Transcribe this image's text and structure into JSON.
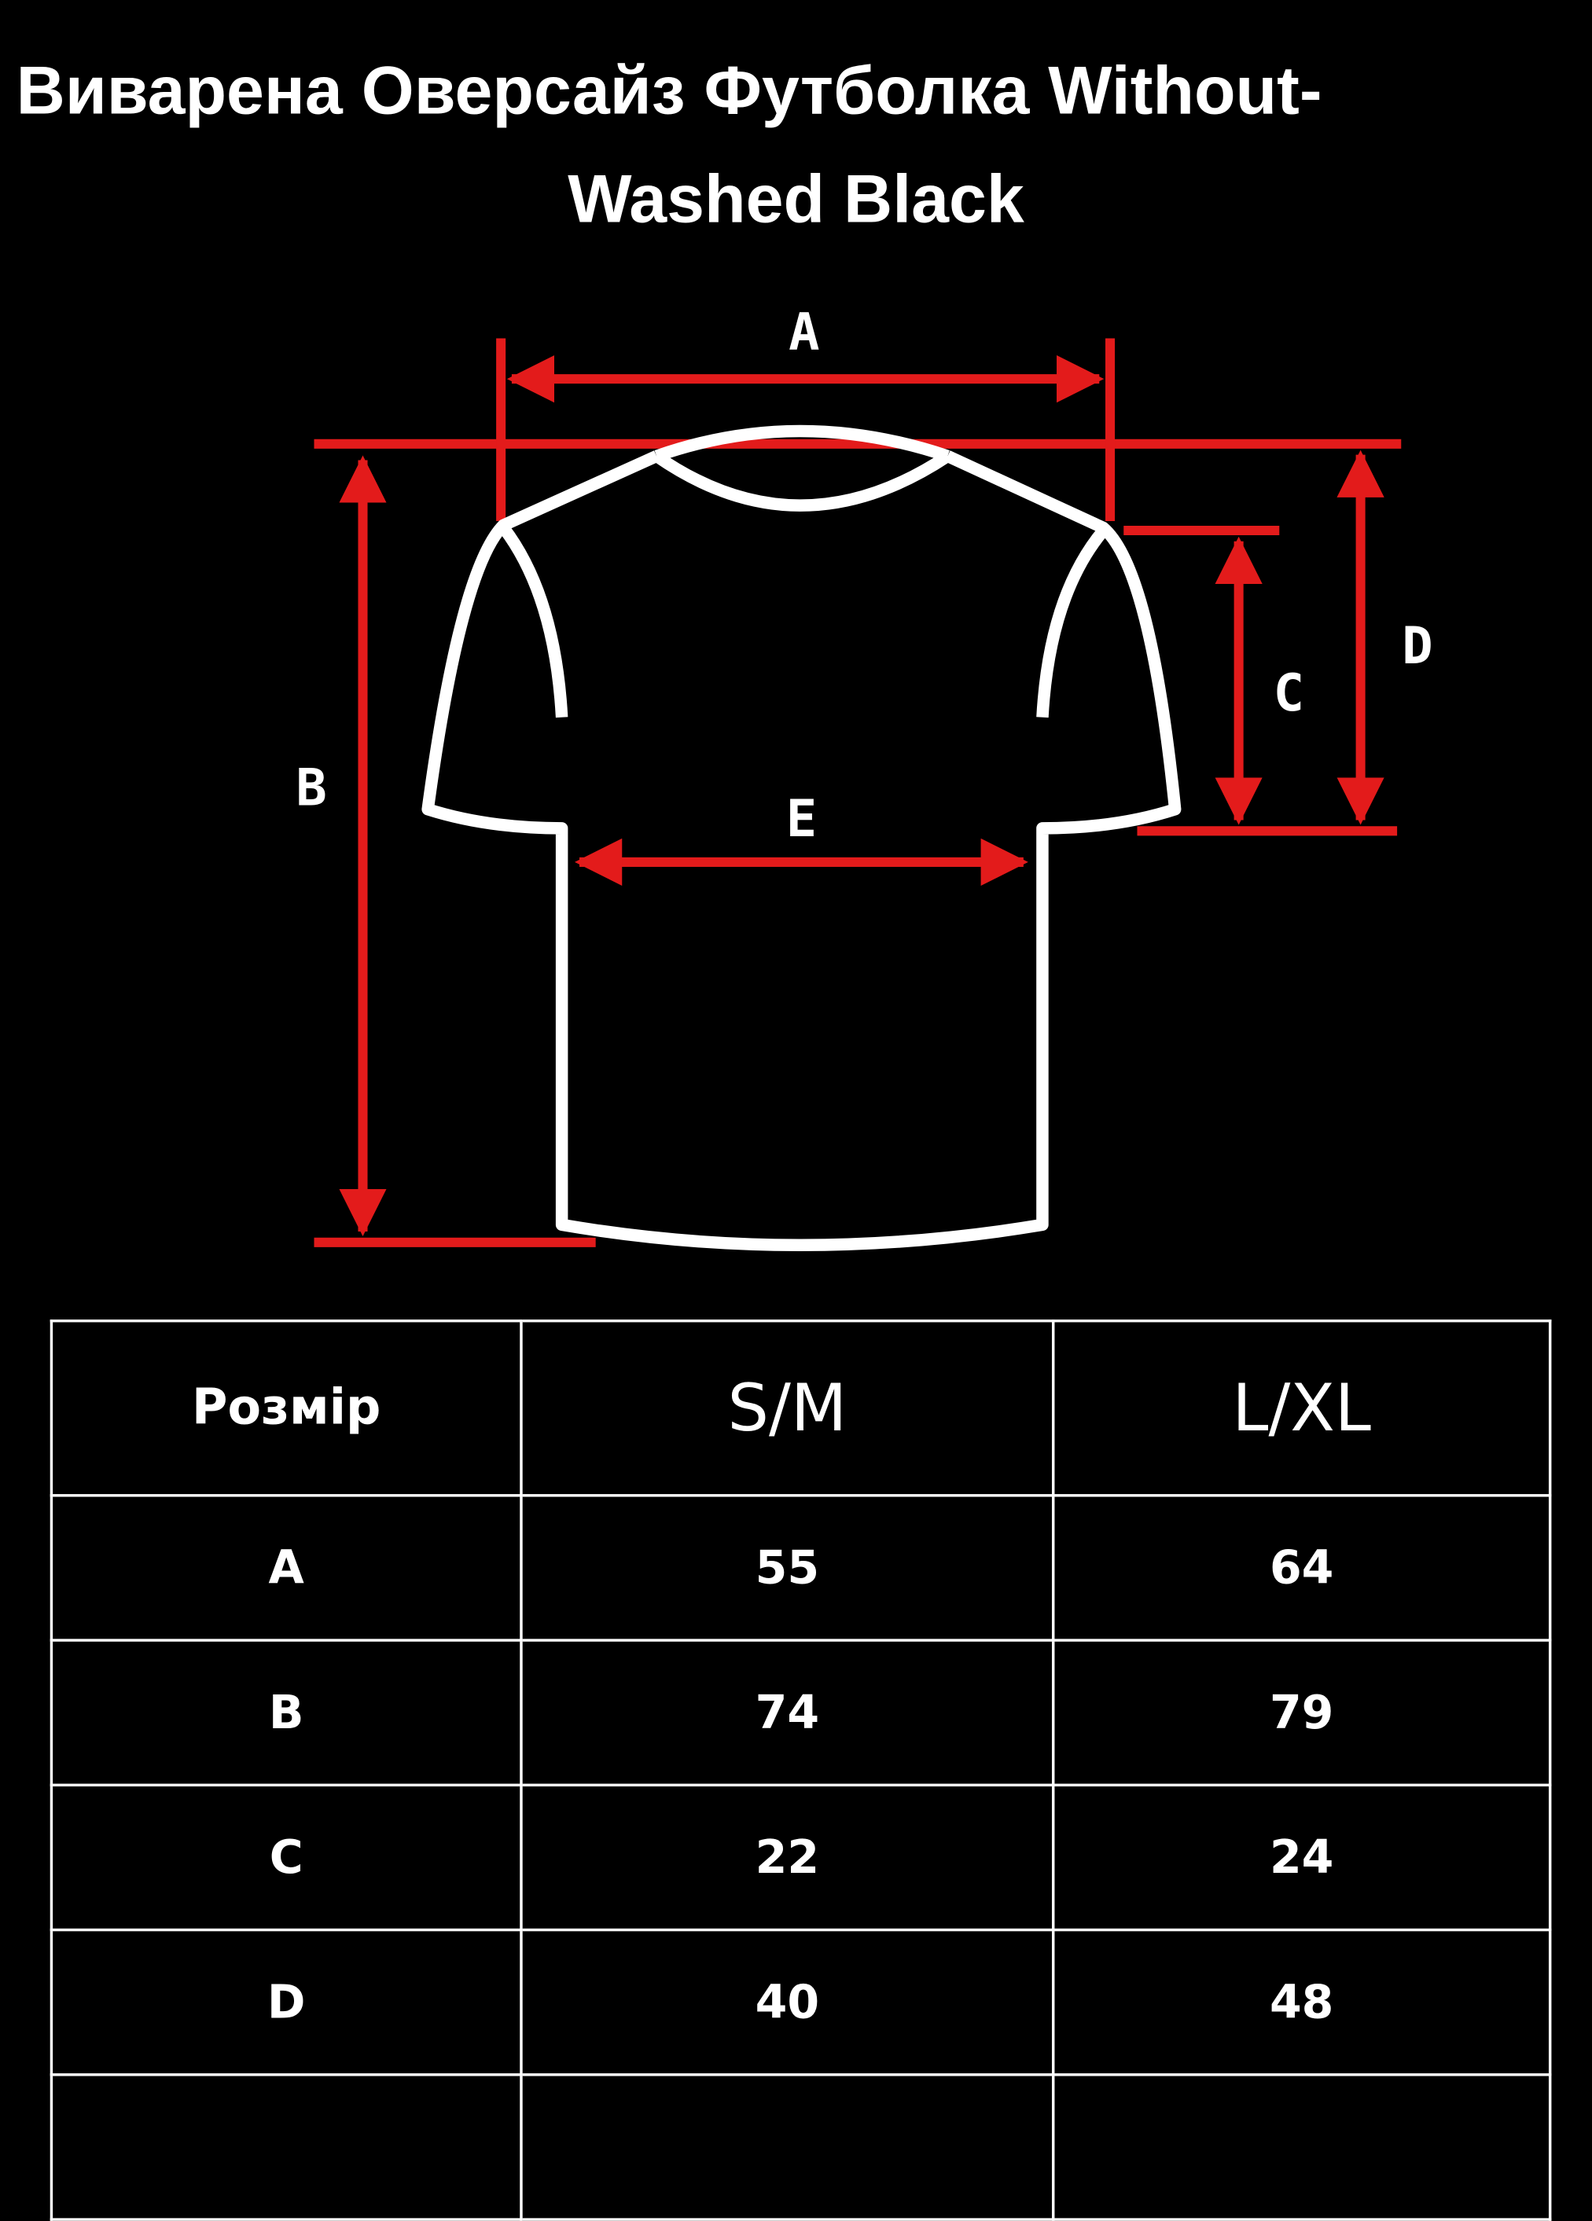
{
  "title_line1": "Виварена Оверсайз Футболка Without-",
  "title_line2": "Washed Black",
  "diagram_labels": {
    "a": "A",
    "b": "B",
    "c": "C",
    "d": "D",
    "e": "E"
  },
  "colors": {
    "arrow": "#e31b1b",
    "outline": "#ffffff",
    "background": "#000000"
  },
  "table": {
    "headers": [
      "Розмір",
      "S/M",
      "L/XL"
    ],
    "rows": [
      [
        "A",
        "55",
        "64"
      ],
      [
        "B",
        "74",
        "79"
      ],
      [
        "C",
        "22",
        "24"
      ],
      [
        "D",
        "40",
        "48"
      ],
      [
        "",
        "",
        ""
      ]
    ]
  }
}
